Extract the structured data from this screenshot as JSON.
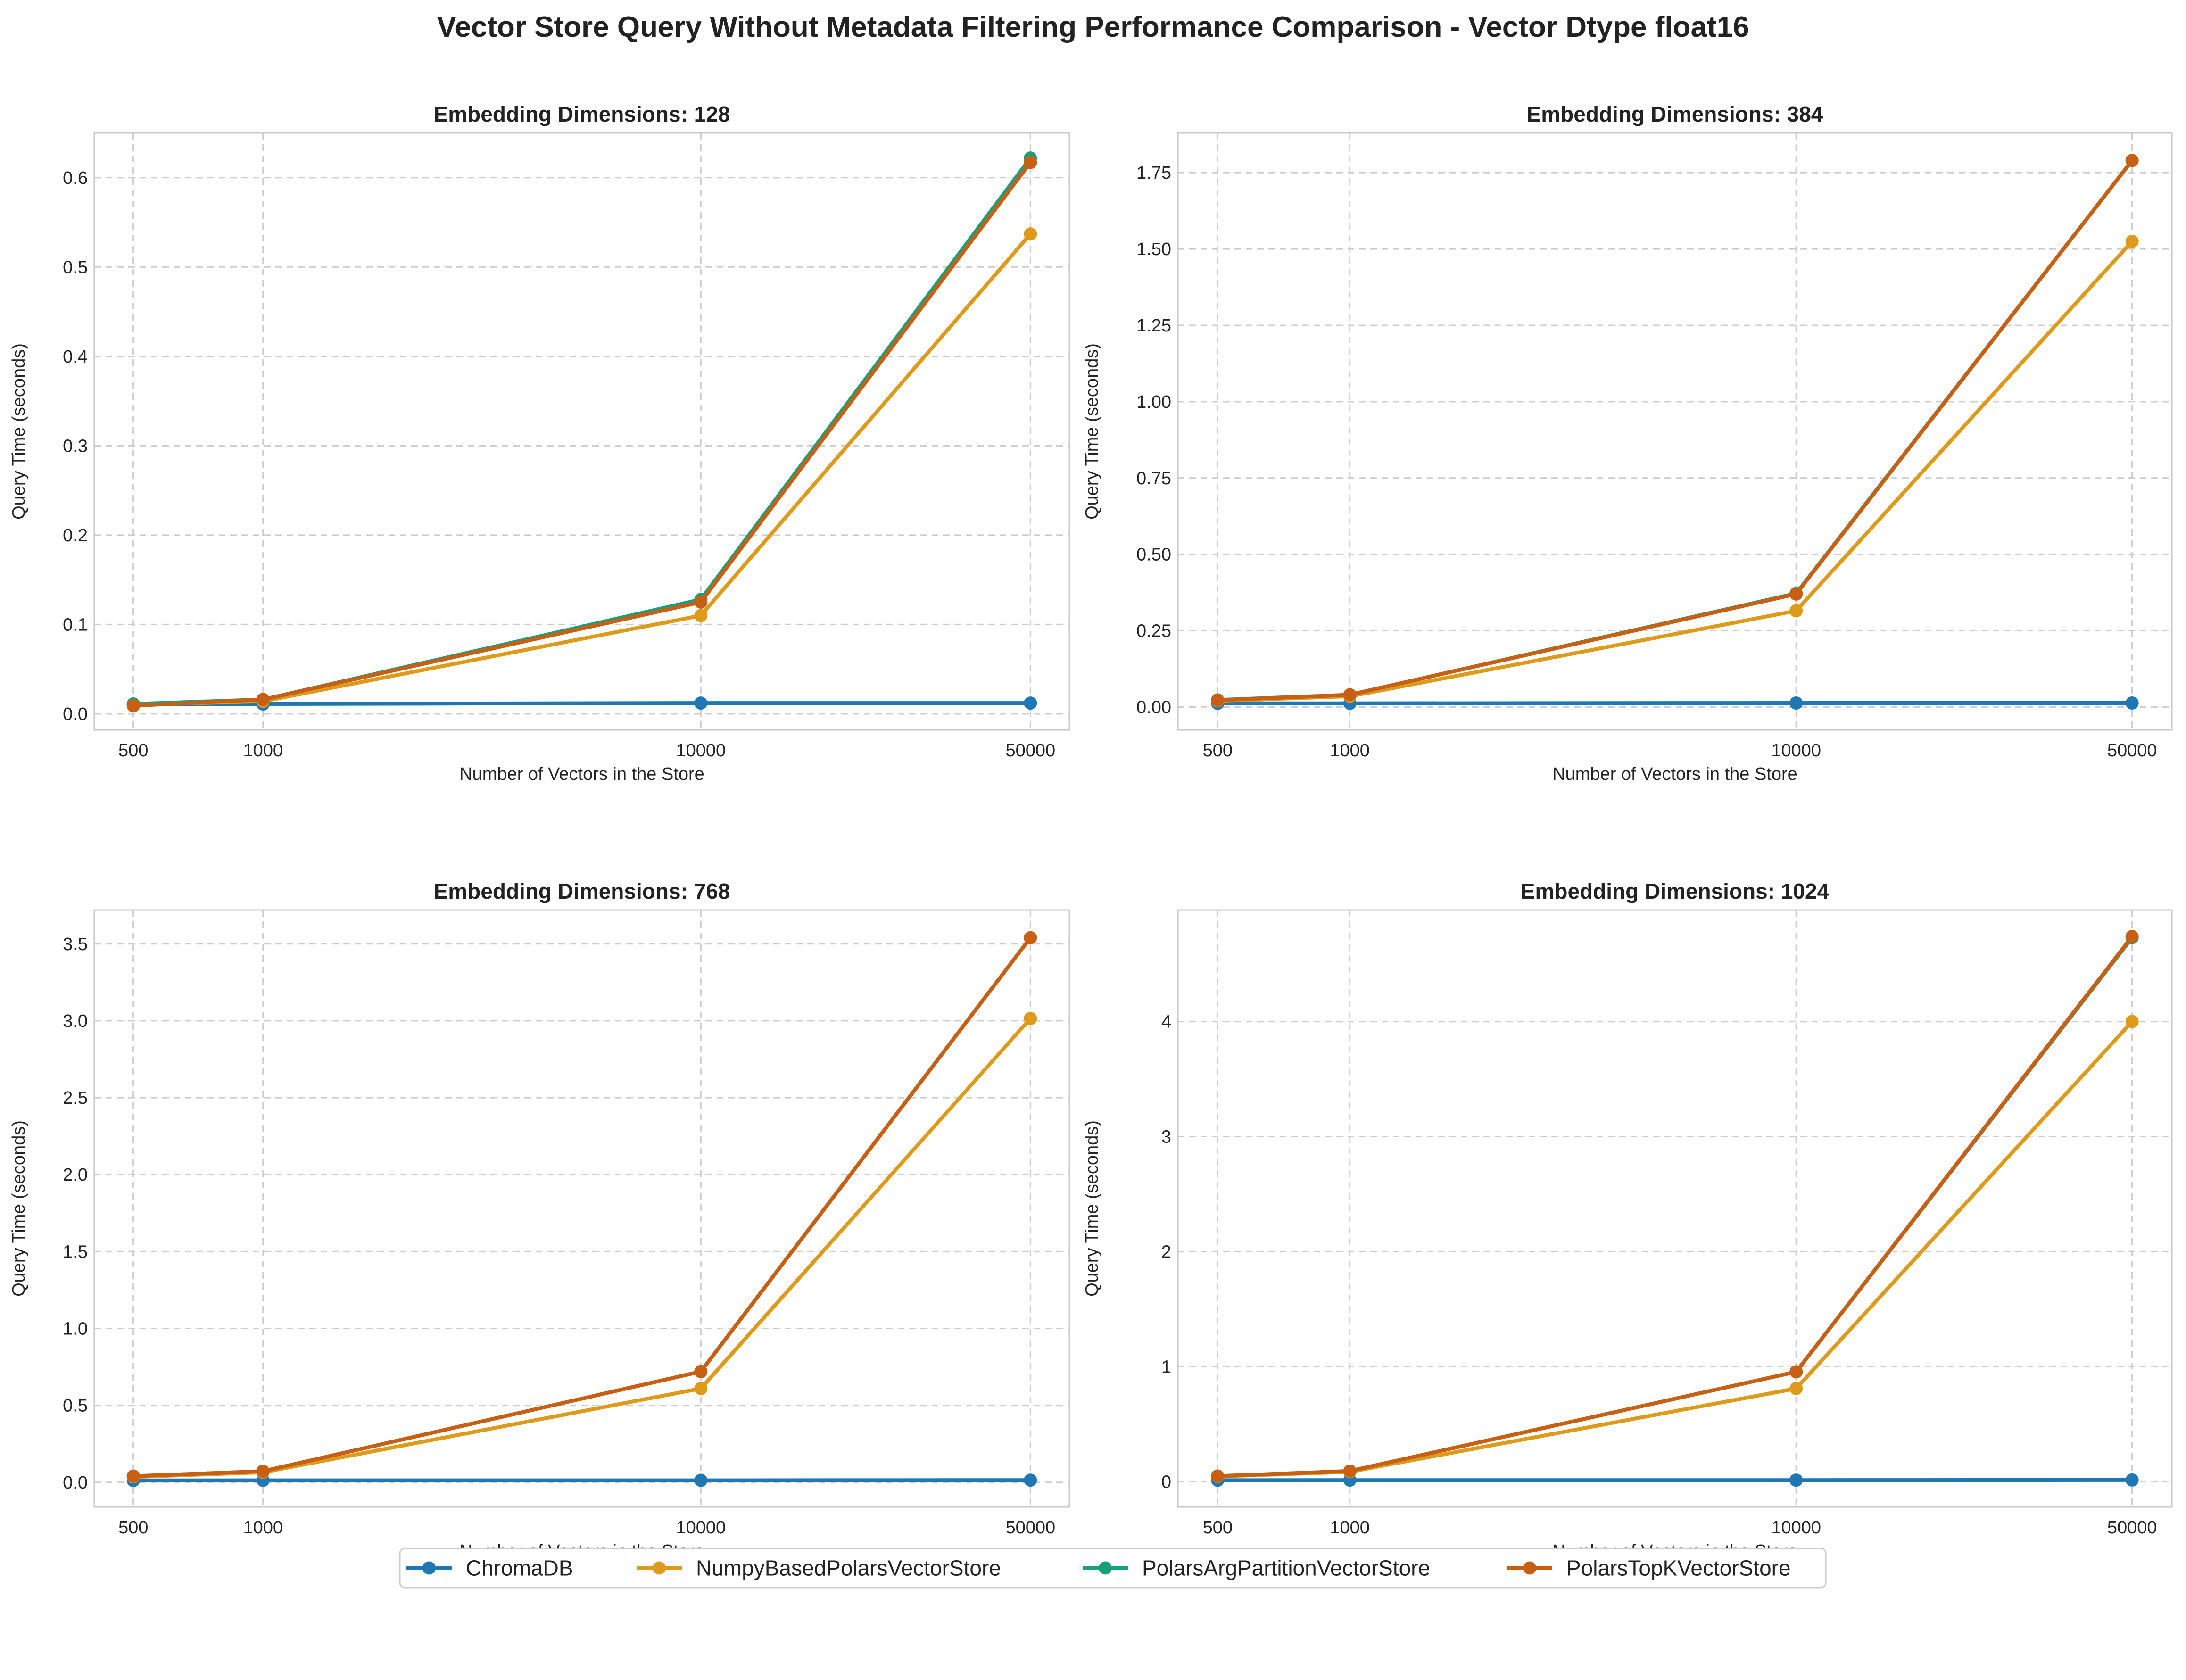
{
  "suptitle": "Vector Store Query Without Metadata Filtering Performance Comparison - Vector Dtype float16",
  "legend": {
    "placement": "bottom-center",
    "entries": [
      "ChromaDB",
      "NumpyBasedPolarsVectorStore",
      "PolarsArgPartitionVectorStore",
      "PolarsTopKVectorStore"
    ]
  },
  "colors": {
    "ChromaDB": "#1f77b4",
    "NumpyBasedPolarsVectorStore": "#de9a1a",
    "PolarsArgPartitionVectorStore": "#17a07a",
    "PolarsTopKVectorStore": "#c95f12"
  },
  "chart_data": [
    {
      "type": "line",
      "title": "Embedding Dimensions: 128",
      "xlabel": "Number of Vectors in the Store",
      "ylabel": "Query Time (seconds)",
      "x_scale": "categorical-positioned",
      "x": [
        500,
        1000,
        10000,
        50000
      ],
      "x_tick_labels": [
        "500",
        "1000",
        "10000",
        "50000"
      ],
      "ylim": [
        -0.018,
        0.65
      ],
      "yticks": [
        0.0,
        0.1,
        0.2,
        0.3,
        0.4,
        0.5,
        0.6
      ],
      "y_tick_labels": [
        "0.0",
        "0.1",
        "0.2",
        "0.3",
        "0.4",
        "0.5",
        "0.6"
      ],
      "grid": true,
      "series": [
        {
          "name": "ChromaDB",
          "values": [
            0.011,
            0.011,
            0.012,
            0.012
          ]
        },
        {
          "name": "NumpyBasedPolarsVectorStore",
          "values": [
            0.01,
            0.014,
            0.11,
            0.537
          ]
        },
        {
          "name": "PolarsArgPartitionVectorStore",
          "values": [
            0.011,
            0.016,
            0.128,
            0.622
          ]
        },
        {
          "name": "PolarsTopKVectorStore",
          "values": [
            0.009,
            0.016,
            0.125,
            0.617
          ]
        }
      ]
    },
    {
      "type": "line",
      "title": "Embedding Dimensions: 384",
      "xlabel": "Number of Vectors in the Store",
      "ylabel": "Query Time (seconds)",
      "x_scale": "categorical-positioned",
      "x": [
        500,
        1000,
        10000,
        50000
      ],
      "x_tick_labels": [
        "500",
        "1000",
        "10000",
        "50000"
      ],
      "ylim": [
        -0.075,
        1.88
      ],
      "yticks": [
        0.0,
        0.25,
        0.5,
        0.75,
        1.0,
        1.25,
        1.5,
        1.75
      ],
      "y_tick_labels": [
        "0.00",
        "0.25",
        "0.50",
        "0.75",
        "1.00",
        "1.25",
        "1.50",
        "1.75"
      ],
      "grid": true,
      "series": [
        {
          "name": "ChromaDB",
          "values": [
            0.012,
            0.012,
            0.013,
            0.013
          ]
        },
        {
          "name": "NumpyBasedPolarsVectorStore",
          "values": [
            0.02,
            0.035,
            0.315,
            1.525
          ]
        },
        {
          "name": "PolarsArgPartitionVectorStore",
          "values": [
            0.023,
            0.04,
            0.372,
            1.79
          ]
        },
        {
          "name": "PolarsTopKVectorStore",
          "values": [
            0.022,
            0.04,
            0.37,
            1.79
          ]
        }
      ]
    },
    {
      "type": "line",
      "title": "Embedding Dimensions: 768",
      "xlabel": "Number of Vectors in the Store",
      "ylabel": "Query Time (seconds)",
      "x_scale": "categorical-positioned",
      "x": [
        500,
        1000,
        10000,
        50000
      ],
      "x_tick_labels": [
        "500",
        "1000",
        "10000",
        "50000"
      ],
      "ylim": [
        -0.16,
        3.72
      ],
      "yticks": [
        0.0,
        0.5,
        1.0,
        1.5,
        2.0,
        2.5,
        3.0,
        3.5
      ],
      "y_tick_labels": [
        "0.0",
        "0.5",
        "1.0",
        "1.5",
        "2.0",
        "2.5",
        "3.0",
        "3.5"
      ],
      "grid": true,
      "series": [
        {
          "name": "ChromaDB",
          "values": [
            0.012,
            0.013,
            0.013,
            0.014
          ]
        },
        {
          "name": "NumpyBasedPolarsVectorStore",
          "values": [
            0.035,
            0.065,
            0.61,
            3.015
          ]
        },
        {
          "name": "PolarsArgPartitionVectorStore",
          "values": [
            0.04,
            0.072,
            0.72,
            3.54
          ]
        },
        {
          "name": "PolarsTopKVectorStore",
          "values": [
            0.04,
            0.072,
            0.72,
            3.54
          ]
        }
      ]
    },
    {
      "type": "line",
      "title": "Embedding Dimensions: 1024",
      "xlabel": "Number of Vectors in the Store",
      "ylabel": "Query Time (seconds)",
      "x_scale": "categorical-positioned",
      "x": [
        500,
        1000,
        10000,
        50000
      ],
      "x_tick_labels": [
        "500",
        "1000",
        "10000",
        "50000"
      ],
      "ylim": [
        -0.22,
        4.97
      ],
      "yticks": [
        0,
        1,
        2,
        3,
        4
      ],
      "y_tick_labels": [
        "0",
        "1",
        "2",
        "3",
        "4"
      ],
      "grid": true,
      "series": [
        {
          "name": "ChromaDB",
          "values": [
            0.012,
            0.013,
            0.013,
            0.014
          ]
        },
        {
          "name": "NumpyBasedPolarsVectorStore",
          "values": [
            0.045,
            0.085,
            0.81,
            4.0
          ]
        },
        {
          "name": "PolarsArgPartitionVectorStore",
          "values": [
            0.048,
            0.092,
            0.955,
            4.73
          ]
        },
        {
          "name": "PolarsTopKVectorStore",
          "values": [
            0.048,
            0.092,
            0.955,
            4.74
          ]
        }
      ]
    }
  ]
}
